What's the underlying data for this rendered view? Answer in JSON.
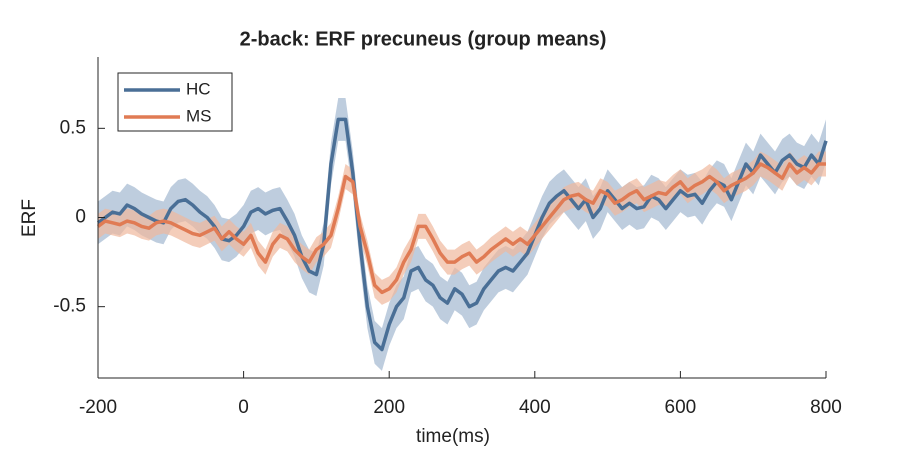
{
  "chart_data": {
    "type": "line",
    "title": "2-back: ERF precuneus (group means)",
    "x_label": "time(ms)",
    "y_label": "ERF",
    "x": [
      -200,
      -190,
      -180,
      -170,
      -160,
      -150,
      -140,
      -130,
      -120,
      -110,
      -100,
      -90,
      -80,
      -70,
      -60,
      -50,
      -40,
      -30,
      -20,
      -10,
      0,
      10,
      20,
      30,
      40,
      50,
      60,
      70,
      80,
      90,
      100,
      110,
      120,
      130,
      140,
      150,
      160,
      170,
      180,
      190,
      200,
      210,
      220,
      230,
      240,
      250,
      260,
      270,
      280,
      290,
      300,
      310,
      320,
      330,
      340,
      350,
      360,
      370,
      380,
      390,
      400,
      410,
      420,
      430,
      440,
      450,
      460,
      470,
      480,
      490,
      500,
      510,
      520,
      530,
      540,
      550,
      560,
      570,
      580,
      590,
      600,
      610,
      620,
      630,
      640,
      650,
      660,
      670,
      680,
      690,
      700,
      710,
      720,
      730,
      740,
      750,
      760,
      770,
      780,
      790,
      800
    ],
    "series": [
      {
        "name": "HC",
        "color": "#4a6f96",
        "band_color": "#a3b8d0",
        "error": 0.12,
        "values": [
          -0.03,
          0.0,
          0.03,
          0.02,
          0.07,
          0.05,
          0.02,
          0.0,
          -0.02,
          -0.03,
          0.05,
          0.09,
          0.1,
          0.07,
          0.03,
          0.0,
          -0.05,
          -0.12,
          -0.13,
          -0.1,
          -0.05,
          0.03,
          0.05,
          0.02,
          0.04,
          0.05,
          -0.02,
          -0.1,
          -0.22,
          -0.3,
          -0.32,
          -0.15,
          0.3,
          0.55,
          0.55,
          0.25,
          -0.15,
          -0.5,
          -0.7,
          -0.74,
          -0.6,
          -0.5,
          -0.45,
          -0.3,
          -0.28,
          -0.35,
          -0.38,
          -0.45,
          -0.48,
          -0.4,
          -0.43,
          -0.5,
          -0.48,
          -0.4,
          -0.35,
          -0.3,
          -0.28,
          -0.3,
          -0.25,
          -0.2,
          -0.1,
          0.0,
          0.08,
          0.12,
          0.15,
          0.1,
          0.05,
          0.1,
          0.0,
          0.05,
          0.15,
          0.1,
          0.05,
          0.08,
          0.05,
          0.06,
          0.12,
          0.1,
          0.05,
          0.1,
          0.15,
          0.12,
          0.13,
          0.08,
          0.15,
          0.2,
          0.18,
          0.1,
          0.2,
          0.3,
          0.25,
          0.35,
          0.3,
          0.25,
          0.32,
          0.35,
          0.3,
          0.28,
          0.35,
          0.3,
          0.43
        ]
      },
      {
        "name": "MS",
        "color": "#e07b54",
        "band_color": "#efb89d",
        "error": 0.07,
        "values": [
          -0.05,
          -0.02,
          -0.03,
          -0.04,
          -0.02,
          -0.03,
          -0.05,
          -0.06,
          -0.03,
          -0.02,
          -0.03,
          -0.05,
          -0.07,
          -0.09,
          -0.1,
          -0.08,
          -0.06,
          -0.12,
          -0.08,
          -0.12,
          -0.15,
          -0.1,
          -0.2,
          -0.25,
          -0.15,
          -0.1,
          -0.12,
          -0.18,
          -0.22,
          -0.25,
          -0.18,
          -0.15,
          -0.1,
          0.05,
          0.23,
          0.2,
          -0.05,
          -0.2,
          -0.38,
          -0.42,
          -0.4,
          -0.35,
          -0.25,
          -0.18,
          -0.05,
          -0.05,
          -0.12,
          -0.2,
          -0.25,
          -0.25,
          -0.22,
          -0.2,
          -0.25,
          -0.22,
          -0.18,
          -0.15,
          -0.12,
          -0.15,
          -0.12,
          -0.15,
          -0.1,
          -0.05,
          0.0,
          0.05,
          0.1,
          0.12,
          0.13,
          0.1,
          0.08,
          0.15,
          0.13,
          0.08,
          0.1,
          0.13,
          0.15,
          0.1,
          0.12,
          0.14,
          0.13,
          0.17,
          0.2,
          0.15,
          0.18,
          0.2,
          0.23,
          0.2,
          0.15,
          0.18,
          0.2,
          0.22,
          0.25,
          0.3,
          0.28,
          0.25,
          0.22,
          0.3,
          0.25,
          0.28,
          0.25,
          0.3,
          0.3
        ]
      }
    ],
    "xlim": [
      -200,
      800
    ],
    "xticks": [
      -200,
      0,
      200,
      400,
      600,
      800
    ],
    "ylim": [
      -0.9,
      0.9
    ],
    "yticks": [
      -0.5,
      0,
      0.5
    ],
    "grid": false,
    "legend": "upper left"
  }
}
